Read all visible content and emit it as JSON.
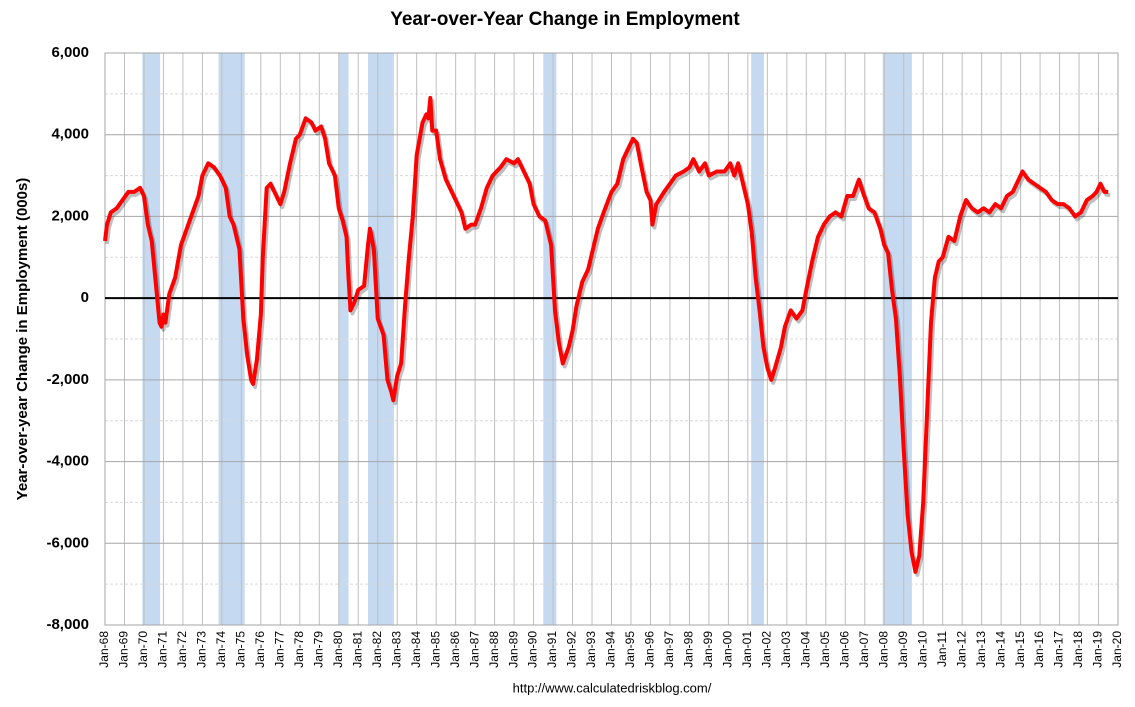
{
  "chart_data": {
    "type": "line",
    "title": "Year-over-Year Change in Employment",
    "y_label": "Year-over-year Change in Employment (000s)",
    "source": "http://www.calculatedriskblog.com/",
    "color": "#ff0000",
    "recession_color": "#c5d9f1",
    "grid": true,
    "ylim": [
      -8000,
      6000
    ],
    "yticks": [
      {
        "value": -8000,
        "label": "-8,000"
      },
      {
        "value": -6000,
        "label": "-6,000"
      },
      {
        "value": -4000,
        "label": "-4,000"
      },
      {
        "value": -2000,
        "label": "-2,000"
      },
      0,
      {
        "value": 2000,
        "label": "2,000"
      },
      {
        "value": 4000,
        "label": "4,000"
      },
      {
        "value": 6000,
        "label": "6,000"
      }
    ],
    "xlim": [
      1968,
      2020
    ],
    "xticks": [
      {
        "value": 1968,
        "label": "Jan-68"
      },
      {
        "value": 1969,
        "label": "Jan-69"
      },
      {
        "value": 1970,
        "label": "Jan-70"
      },
      {
        "value": 1971,
        "label": "Jan-71"
      },
      {
        "value": 1972,
        "label": "Jan-72"
      },
      {
        "value": 1973,
        "label": "Jan-73"
      },
      {
        "value": 1974,
        "label": "Jan-74"
      },
      {
        "value": 1975,
        "label": "Jan-75"
      },
      {
        "value": 1976,
        "label": "Jan-76"
      },
      {
        "value": 1977,
        "label": "Jan-77"
      },
      {
        "value": 1978,
        "label": "Jan-78"
      },
      {
        "value": 1979,
        "label": "Jan-79"
      },
      {
        "value": 1980,
        "label": "Jan-80"
      },
      {
        "value": 1981,
        "label": "Jan-81"
      },
      {
        "value": 1982,
        "label": "Jan-82"
      },
      {
        "value": 1983,
        "label": "Jan-83"
      },
      {
        "value": 1984,
        "label": "Jan-84"
      },
      {
        "value": 1985,
        "label": "Jan-85"
      },
      {
        "value": 1986,
        "label": "Jan-86"
      },
      {
        "value": 1987,
        "label": "Jan-87"
      },
      {
        "value": 1988,
        "label": "Jan-88"
      },
      {
        "value": 1989,
        "label": "Jan-89"
      },
      {
        "value": 1990,
        "label": "Jan-90"
      },
      {
        "value": 1991,
        "label": "Jan-91"
      },
      {
        "value": 1992,
        "label": "Jan-92"
      },
      {
        "value": 1993,
        "label": "Jan-93"
      },
      {
        "value": 1994,
        "label": "Jan-94"
      },
      {
        "value": 1995,
        "label": "Jan-95"
      },
      {
        "value": 1996,
        "label": "Jan-96"
      },
      {
        "value": 1997,
        "label": "Jan-97"
      },
      {
        "value": 1998,
        "label": "Jan-98"
      },
      {
        "value": 1999,
        "label": "Jan-99"
      },
      {
        "value": 2000,
        "label": "Jan-00"
      },
      {
        "value": 2001,
        "label": "Jan-01"
      },
      {
        "value": 2002,
        "label": "Jan-02"
      },
      {
        "value": 2003,
        "label": "Jan-03"
      },
      {
        "value": 2004,
        "label": "Jan-04"
      },
      {
        "value": 2005,
        "label": "Jan-05"
      },
      {
        "value": 2006,
        "label": "Jan-06"
      },
      {
        "value": 2007,
        "label": "Jan-07"
      },
      {
        "value": 2008,
        "label": "Jan-08"
      },
      {
        "value": 2009,
        "label": "Jan-09"
      },
      {
        "value": 2010,
        "label": "Jan-10"
      },
      {
        "value": 2011,
        "label": "Jan-11"
      },
      {
        "value": 2012,
        "label": "Jan-12"
      },
      {
        "value": 2013,
        "label": "Jan-13"
      },
      {
        "value": 2014,
        "label": "Jan-14"
      },
      {
        "value": 2015,
        "label": "Jan-15"
      },
      {
        "value": 2016,
        "label": "Jan-16"
      },
      {
        "value": 2017,
        "label": "Jan-17"
      },
      {
        "value": 2018,
        "label": "Jan-18"
      },
      {
        "value": 2019,
        "label": "Jan-19"
      },
      {
        "value": 2020,
        "label": "Jan-20"
      }
    ],
    "recessions": [
      [
        1969.92,
        1970.83
      ],
      [
        1973.83,
        1975.17
      ],
      [
        1980.0,
        1980.5
      ],
      [
        1981.5,
        1982.83
      ],
      [
        1990.5,
        1991.17
      ],
      [
        2001.17,
        2001.83
      ],
      [
        2007.92,
        2009.42
      ]
    ],
    "x": [
      1968.0,
      1968.1,
      1968.3,
      1968.6,
      1968.9,
      1969.2,
      1969.5,
      1969.8,
      1970.0,
      1970.2,
      1970.4,
      1970.6,
      1970.8,
      1970.9,
      1971.0,
      1971.1,
      1971.3,
      1971.6,
      1971.9,
      1972.2,
      1972.5,
      1972.8,
      1973.0,
      1973.3,
      1973.6,
      1973.9,
      1974.2,
      1974.4,
      1974.6,
      1974.9,
      1975.1,
      1975.3,
      1975.5,
      1975.6,
      1975.8,
      1976.0,
      1976.1,
      1976.3,
      1976.5,
      1976.8,
      1977.0,
      1977.2,
      1977.5,
      1977.8,
      1978.0,
      1978.3,
      1978.6,
      1978.8,
      1979.1,
      1979.3,
      1979.5,
      1979.8,
      1980.0,
      1980.2,
      1980.4,
      1980.5,
      1980.6,
      1980.8,
      1981.0,
      1981.3,
      1981.5,
      1981.6,
      1981.8,
      1982.0,
      1982.3,
      1982.5,
      1982.7,
      1982.8,
      1983.0,
      1983.2,
      1983.4,
      1983.6,
      1983.8,
      1984.0,
      1984.3,
      1984.5,
      1984.6,
      1984.7,
      1984.8,
      1985.0,
      1985.2,
      1985.5,
      1985.9,
      1986.3,
      1986.5,
      1986.8,
      1987.0,
      1987.3,
      1987.6,
      1987.9,
      1988.3,
      1988.6,
      1989.0,
      1989.2,
      1989.5,
      1989.8,
      1990.0,
      1990.3,
      1990.6,
      1990.9,
      1991.1,
      1991.3,
      1991.5,
      1991.8,
      1992.0,
      1992.2,
      1992.5,
      1992.8,
      1993.0,
      1993.3,
      1993.6,
      1994.0,
      1994.3,
      1994.6,
      1994.9,
      1995.1,
      1995.3,
      1995.5,
      1995.8,
      1996.0,
      1996.1,
      1996.3,
      1996.7,
      1997.0,
      1997.3,
      1997.7,
      1998.0,
      1998.2,
      1998.5,
      1998.8,
      1999.0,
      1999.4,
      1999.8,
      2000.1,
      2000.3,
      2000.5,
      2000.8,
      2001.0,
      2001.2,
      2001.4,
      2001.6,
      2001.8,
      2002.0,
      2002.2,
      2002.4,
      2002.7,
      2002.9,
      2003.2,
      2003.5,
      2003.8,
      2004.0,
      2004.3,
      2004.6,
      2004.9,
      2005.2,
      2005.5,
      2005.8,
      2006.1,
      2006.4,
      2006.7,
      2006.9,
      2007.2,
      2007.5,
      2007.8,
      2008.0,
      2008.2,
      2008.4,
      2008.6,
      2008.8,
      2009.0,
      2009.2,
      2009.4,
      2009.6,
      2009.8,
      2010.0,
      2010.2,
      2010.4,
      2010.6,
      2010.8,
      2011.0,
      2011.3,
      2011.6,
      2011.9,
      2012.2,
      2012.5,
      2012.8,
      2013.1,
      2013.4,
      2013.7,
      2014.0,
      2014.3,
      2014.6,
      2014.9,
      2015.1,
      2015.4,
      2015.7,
      2016.0,
      2016.3,
      2016.6,
      2016.9,
      2017.2,
      2017.5,
      2017.8,
      2018.1,
      2018.4,
      2018.7,
      2018.9,
      2019.1,
      2019.3,
      2019.5
    ],
    "values": [
      1400,
      1800,
      2100,
      2200,
      2400,
      2600,
      2600,
      2700,
      2500,
      1800,
      1400,
      400,
      -600,
      -700,
      -400,
      -600,
      100,
      500,
      1300,
      1700,
      2100,
      2500,
      3000,
      3300,
      3200,
      3000,
      2700,
      2000,
      1800,
      1200,
      -500,
      -1400,
      -2000,
      -2100,
      -1500,
      -400,
      1000,
      2700,
      2800,
      2500,
      2300,
      2600,
      3300,
      3900,
      4000,
      4400,
      4300,
      4100,
      4200,
      3900,
      3300,
      3000,
      2200,
      1900,
      1500,
      500,
      -300,
      -100,
      200,
      300,
      1300,
      1700,
      1200,
      -500,
      -900,
      -2000,
      -2300,
      -2500,
      -1900,
      -1600,
      -200,
      1000,
      2000,
      3500,
      4300,
      4500,
      4400,
      4900,
      4100,
      4100,
      3400,
      2900,
      2500,
      2100,
      1700,
      1800,
      1800,
      2200,
      2700,
      3000,
      3200,
      3400,
      3300,
      3400,
      3100,
      2800,
      2300,
      2000,
      1900,
      1300,
      -300,
      -1100,
      -1600,
      -1200,
      -800,
      -200,
      400,
      700,
      1100,
      1700,
      2100,
      2600,
      2800,
      3400,
      3700,
      3900,
      3800,
      3300,
      2600,
      2400,
      1800,
      2300,
      2600,
      2800,
      3000,
      3100,
      3200,
      3400,
      3100,
      3300,
      3000,
      3100,
      3100,
      3300,
      3000,
      3300,
      2700,
      2300,
      1600,
      500,
      -300,
      -1200,
      -1700,
      -2000,
      -1700,
      -1200,
      -700,
      -300,
      -500,
      -300,
      200,
      900,
      1500,
      1800,
      2000,
      2100,
      2000,
      2500,
      2500,
      2900,
      2600,
      2200,
      2100,
      1700,
      1300,
      1100,
      200,
      -500,
      -1900,
      -3700,
      -5300,
      -6200,
      -6700,
      -6300,
      -5000,
      -2800,
      -600,
      500,
      900,
      1000,
      1500,
      1400,
      2000,
      2400,
      2200,
      2100,
      2200,
      2100,
      2300,
      2200,
      2500,
      2600,
      2900,
      3100,
      2900,
      2800,
      2700,
      2600,
      2400,
      2300,
      2300,
      2200,
      2000,
      2100,
      2400,
      2500,
      2600,
      2800,
      2600,
      2600
    ]
  }
}
